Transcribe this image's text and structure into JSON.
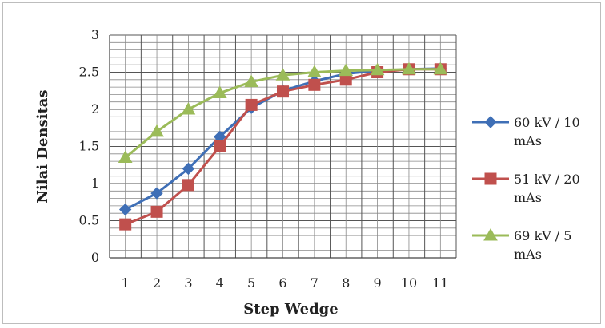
{
  "chart_data": {
    "type": "line",
    "title": "",
    "xlabel": "Step Wedge",
    "ylabel": "Nilai Densitas",
    "categories": [
      "1",
      "2",
      "3",
      "4",
      "5",
      "6",
      "7",
      "8",
      "9",
      "10",
      "11"
    ],
    "ylim": [
      0,
      3
    ],
    "yticks": [
      "0",
      "0.5",
      "1",
      "1.5",
      "2",
      "2.5",
      "3"
    ],
    "grid": true,
    "legend_position": "right",
    "series": [
      {
        "name": "60 kV / 10 mAs",
        "legend_lines": [
          "60 kV / 10",
          "mAs"
        ],
        "color": "#3f6fb6",
        "marker": "diamond",
        "values": [
          0.65,
          0.87,
          1.2,
          1.63,
          2.02,
          2.25,
          2.38,
          2.48,
          2.52,
          2.54,
          2.55
        ]
      },
      {
        "name": "51 kV / 20 mAs",
        "legend_lines": [
          "51 kV / 20",
          "mAs"
        ],
        "color": "#c0504d",
        "marker": "square",
        "values": [
          0.45,
          0.62,
          0.98,
          1.5,
          2.06,
          2.24,
          2.33,
          2.4,
          2.5,
          2.54,
          2.54
        ]
      },
      {
        "name": "69 kV / 5 mAs",
        "legend_lines": [
          "69 kV / 5",
          "mAs"
        ],
        "color": "#9bbb59",
        "marker": "triangle",
        "values": [
          1.35,
          1.7,
          2.0,
          2.22,
          2.37,
          2.46,
          2.5,
          2.52,
          2.53,
          2.54,
          2.54
        ]
      }
    ]
  }
}
